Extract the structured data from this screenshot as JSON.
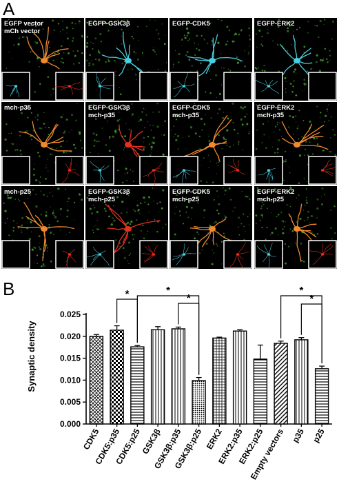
{
  "panel_a": {
    "letter": "A",
    "cells": [
      {
        "lines": [
          "EGFP vector",
          "mCh vector"
        ],
        "cell": "orange",
        "inset_left": "cyan",
        "inset_right": "red"
      },
      {
        "lines": [
          "EGFP-GSK3β"
        ],
        "cell": "cyan",
        "inset_left": "cyan",
        "inset_right": "empty"
      },
      {
        "lines": [
          "EGFP-CDK5"
        ],
        "cell": "cyan",
        "inset_left": "cyan",
        "inset_right": "empty"
      },
      {
        "lines": [
          "EGFP-ERK2"
        ],
        "cell": "cyan",
        "inset_left": "cyan",
        "inset_right": "empty"
      },
      {
        "lines": [
          "mch-p35"
        ],
        "cell": "orange",
        "inset_left": "empty",
        "inset_right": "red"
      },
      {
        "lines": [
          "EGFP-GSK3β",
          "mch-p35"
        ],
        "cell": "red",
        "inset_left": "cyan",
        "inset_right": "red"
      },
      {
        "lines": [
          "EGFP-CDK5",
          "mch-p35"
        ],
        "cell": "orange",
        "inset_left": "cyan",
        "inset_right": "red"
      },
      {
        "lines": [
          "EGFP-ERK2",
          "mch-p35"
        ],
        "cell": "orange",
        "inset_left": "cyan",
        "inset_right": "red"
      },
      {
        "lines": [
          "mch-p25"
        ],
        "cell": "orange",
        "inset_left": "empty",
        "inset_right": "red"
      },
      {
        "lines": [
          "EGFP-GSK3β",
          "mch-p25"
        ],
        "cell": "red",
        "inset_left": "cyan",
        "inset_right": "red"
      },
      {
        "lines": [
          "EGFP-CDK5",
          "mch-p25"
        ],
        "cell": "orange",
        "inset_left": "cyan",
        "inset_right": "red"
      },
      {
        "lines": [
          "EGFP-ERK2",
          "mch-p25"
        ],
        "cell": "orange",
        "inset_left": "cyan",
        "inset_right": "red"
      }
    ],
    "colors": {
      "green": "#3e8f2a",
      "cyan": "#48d0e0",
      "red": "#e43020",
      "orange": "#f08a30",
      "background": "#000000"
    }
  },
  "panel_b": {
    "letter": "B",
    "significance_symbol": "*"
  },
  "chart_data": {
    "type": "bar",
    "ylabel": "Synaptic density",
    "xlabel": "",
    "ylim": [
      0.0,
      0.025
    ],
    "yticks": [
      "0.000",
      "0.005",
      "0.010",
      "0.015",
      "0.020",
      "0.025"
    ],
    "categories": [
      "CDK5",
      "CDK5:p35",
      "CDK5:p25",
      "GSK3β",
      "GSK3β:p35",
      "GSK3β:p25",
      "ERK2",
      "ERK2:p35",
      "ERK2:p25",
      "Empty vectors",
      "p35",
      "p25"
    ],
    "values": [
      0.02,
      0.0214,
      0.0176,
      0.0215,
      0.0217,
      0.0099,
      0.0196,
      0.0212,
      0.0148,
      0.0184,
      0.0192,
      0.0126
    ],
    "errors": [
      0.0004,
      0.001,
      0.0003,
      0.0007,
      0.0004,
      0.0007,
      0.0002,
      0.0003,
      0.0032,
      0.0005,
      0.0005,
      0.0006
    ],
    "patterns": [
      "crosshatch",
      "checker",
      "hlines",
      "vlines",
      "vlines",
      "dots",
      "grid",
      "vlines",
      "hlines",
      "diagonal",
      "vlines",
      "hlines"
    ],
    "comparisons": [
      {
        "from": "CDK5:p35",
        "to": "CDK5:p25",
        "label": "*"
      },
      {
        "from": "CDK5:p25",
        "to": "GSK3β:p25",
        "label": "*"
      },
      {
        "from": "GSK3β:p35",
        "to": "GSK3β:p25",
        "label": "*"
      },
      {
        "from": "Empty vectors",
        "to": "p25",
        "label": "*"
      },
      {
        "from": "p35",
        "to": "p25",
        "label": "*"
      }
    ],
    "grid": false,
    "legend": "none"
  }
}
